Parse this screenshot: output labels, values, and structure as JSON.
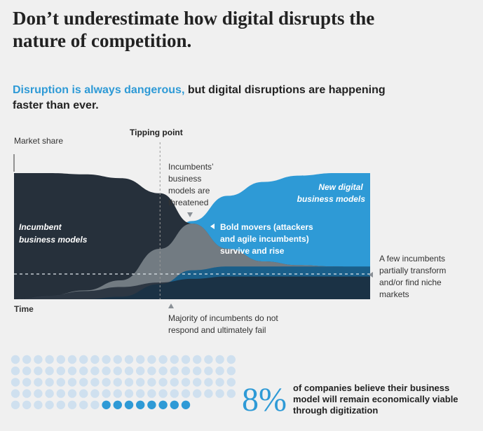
{
  "headline": {
    "line1": "Don’t underestimate how digital disrupts the",
    "line2": "nature of competition."
  },
  "subhead": {
    "highlight": "Disruption is always dangerous,",
    "rest": " but digital disruptions are happening",
    "line2": "faster than ever."
  },
  "chart_data": {
    "type": "area",
    "title": "Disruption is always dangerous, but digital disruptions are happening faster than ever.",
    "ylabel": "Market share",
    "xlabel": "Time",
    "tipping_point_label": "Tipping point",
    "tipping_point_x": 0.41,
    "x": [
      0,
      0.1,
      0.2,
      0.3,
      0.41,
      0.5,
      0.6,
      0.7,
      0.8,
      0.9,
      1.0
    ],
    "series": [
      {
        "name": "Incumbent business models",
        "color": "#26303b",
        "values": [
          1.0,
          1.0,
          0.99,
          0.96,
          0.84,
          0.6,
          0.4,
          0.3,
          0.27,
          0.26,
          0.25
        ]
      },
      {
        "name": "New digital business models",
        "color": "#2e9ad6",
        "values": [
          0.0,
          0.03,
          0.07,
          0.15,
          0.4,
          0.62,
          0.82,
          0.93,
          0.98,
          1.0,
          1.0
        ]
      },
      {
        "name": "Incumbents partially transform",
        "color": "#1a5f8a",
        "values": [
          0.0,
          0.0,
          0.0,
          0.02,
          0.12,
          0.23,
          0.26,
          0.26,
          0.26,
          0.26,
          0.26
        ]
      }
    ],
    "niche_level": 0.2,
    "annotations": {
      "incumbent_label_line1": "Incumbent",
      "incumbent_label_line2": "business models",
      "new_digital_line1": "New digital",
      "new_digital_line2": "business models",
      "threatened_line1": "Incumbents’",
      "threatened_line2": "business",
      "threatened_line3": "models are",
      "threatened_line4": "threatened",
      "bold_movers_line1": "Bold movers (attackers",
      "bold_movers_line2": "and agile incumbents)",
      "bold_movers_line3": "survive and rise",
      "few_incumbents_line1": "A few incumbents",
      "few_incumbents_line2": "partially transform",
      "few_incumbents_line3": "and/or find niche",
      "few_incumbents_line4": "markets",
      "majority_line1": "Majority of incumbents do not",
      "majority_line2": "respond and ultimately fail"
    }
  },
  "stat": {
    "percent": "8%",
    "value": 8,
    "total_dots": 96,
    "line1": "of companies believe their business",
    "line2": "model will remain economically viable",
    "line3": "through digitization"
  },
  "colors": {
    "highlight": "#2e9ad6",
    "dot_light": "#cfe0ef",
    "dot_dark": "#2e9ad6"
  }
}
